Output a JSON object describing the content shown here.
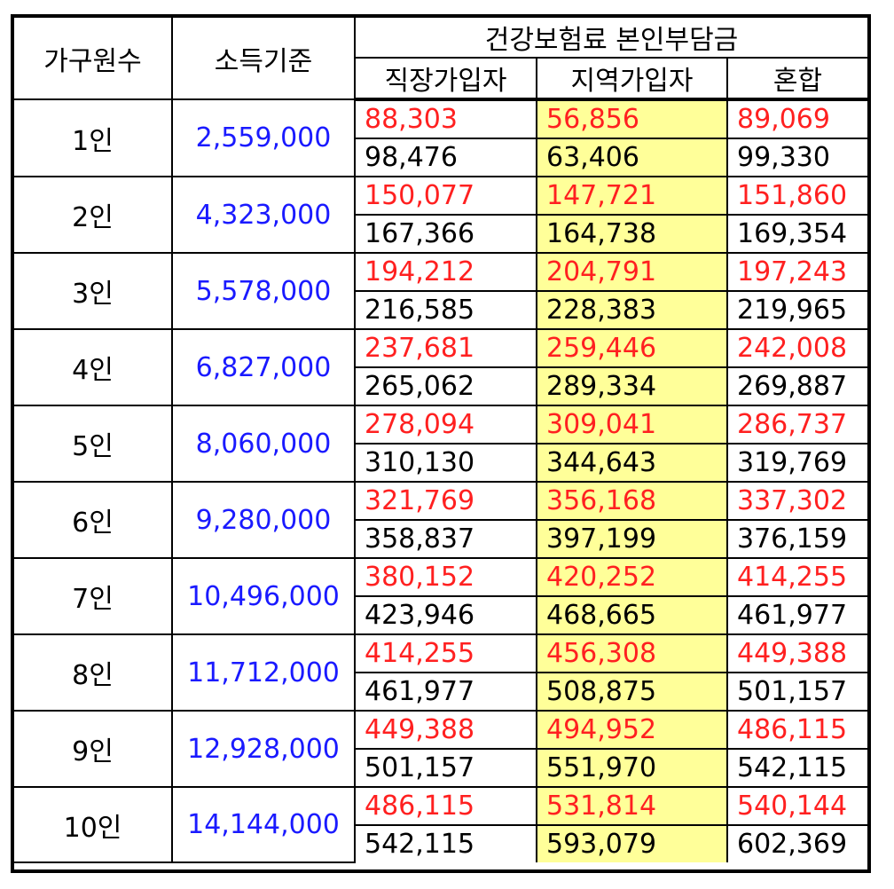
{
  "headers": {
    "household": "가구원수",
    "income": "소득기준",
    "group": "건강보험료 본인부담금",
    "employee": "직장가입자",
    "regional": "지역가입자",
    "mixed": "혼합"
  },
  "colors": {
    "income_text": "#1a1aff",
    "first_row_text": "#ff2020",
    "second_row_text": "#000000",
    "regional_bg": "#ffff99"
  },
  "rows": [
    {
      "household": "1인",
      "income": "2,559,000",
      "employee": [
        "88,303",
        "98,476"
      ],
      "regional": [
        "56,856",
        "63,406"
      ],
      "mixed": [
        "89,069",
        "99,330"
      ]
    },
    {
      "household": "2인",
      "income": "4,323,000",
      "employee": [
        "150,077",
        "167,366"
      ],
      "regional": [
        "147,721",
        "164,738"
      ],
      "mixed": [
        "151,860",
        "169,354"
      ]
    },
    {
      "household": "3인",
      "income": "5,578,000",
      "employee": [
        "194,212",
        "216,585"
      ],
      "regional": [
        "204,791",
        "228,383"
      ],
      "mixed": [
        "197,243",
        "219,965"
      ]
    },
    {
      "household": "4인",
      "income": "6,827,000",
      "employee": [
        "237,681",
        "265,062"
      ],
      "regional": [
        "259,446",
        "289,334"
      ],
      "mixed": [
        "242,008",
        "269,887"
      ]
    },
    {
      "household": "5인",
      "income": "8,060,000",
      "employee": [
        "278,094",
        "310,130"
      ],
      "regional": [
        "309,041",
        "344,643"
      ],
      "mixed": [
        "286,737",
        "319,769"
      ]
    },
    {
      "household": "6인",
      "income": "9,280,000",
      "employee": [
        "321,769",
        "358,837"
      ],
      "regional": [
        "356,168",
        "397,199"
      ],
      "mixed": [
        "337,302",
        "376,159"
      ]
    },
    {
      "household": "7인",
      "income": "10,496,000",
      "employee": [
        "380,152",
        "423,946"
      ],
      "regional": [
        "420,252",
        "468,665"
      ],
      "mixed": [
        "414,255",
        "461,977"
      ]
    },
    {
      "household": "8인",
      "income": "11,712,000",
      "employee": [
        "414,255",
        "461,977"
      ],
      "regional": [
        "456,308",
        "508,875"
      ],
      "mixed": [
        "449,388",
        "501,157"
      ]
    },
    {
      "household": "9인",
      "income": "12,928,000",
      "employee": [
        "449,388",
        "501,157"
      ],
      "regional": [
        "494,952",
        "551,970"
      ],
      "mixed": [
        "486,115",
        "542,115"
      ]
    },
    {
      "household": "10인",
      "income": "14,144,000",
      "employee": [
        "486,115",
        "542,115"
      ],
      "regional": [
        "531,814",
        "593,079"
      ],
      "mixed": [
        "540,144",
        "602,369"
      ]
    }
  ]
}
